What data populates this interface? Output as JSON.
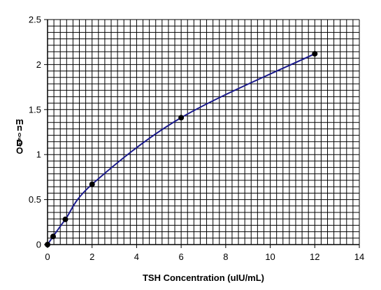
{
  "chart_data": {
    "type": "line",
    "title": "",
    "xlabel": "TSH Concentration (uIU/mL)",
    "ylabel_chars": [
      "m",
      "n",
      "0",
      "5",
      "4",
      "D",
      "O"
    ],
    "xlim": [
      0,
      14
    ],
    "ylim": [
      0,
      2.5
    ],
    "xticks": [
      "0",
      "2",
      "4",
      "6",
      "8",
      "10",
      "12",
      "14"
    ],
    "yticks": [
      "0",
      "0.5",
      "1",
      "1.5",
      "2",
      "2.5"
    ],
    "grid": true,
    "series": [
      {
        "points": [
          {
            "x": 0,
            "y": 0.0
          },
          {
            "x": 0.25,
            "y": 0.09
          },
          {
            "x": 0.8,
            "y": 0.28
          },
          {
            "x": 2,
            "y": 0.67
          },
          {
            "x": 6,
            "y": 1.41
          },
          {
            "x": 12,
            "y": 2.12
          }
        ],
        "line_color": "#1a1a8c",
        "marker_color": "#000000"
      }
    ]
  }
}
